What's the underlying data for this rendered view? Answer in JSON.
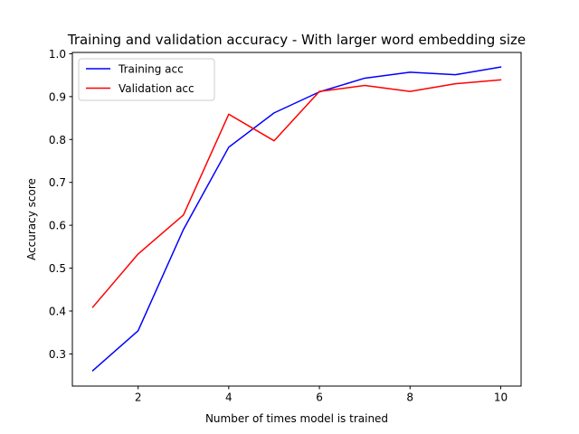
{
  "chart_data": {
    "type": "line",
    "title": "Training and validation accuracy - With larger word embedding size",
    "xlabel": "Number of times model is trained",
    "ylabel": "Accuracy score",
    "x": [
      1,
      2,
      3,
      4,
      5,
      6,
      7,
      8,
      9,
      10
    ],
    "xlim": [
      0.55,
      10.45
    ],
    "ylim": [
      0.225,
      1.003
    ],
    "xticks": [
      2,
      4,
      6,
      8,
      10
    ],
    "xtick_labels": [
      "2",
      "4",
      "6",
      "8",
      "10"
    ],
    "yticks": [
      0.3,
      0.4,
      0.5,
      0.6,
      0.7,
      0.8,
      0.9,
      1.0
    ],
    "ytick_labels": [
      "0.3",
      "0.4",
      "0.5",
      "0.6",
      "0.7",
      "0.8",
      "0.9",
      "1.0"
    ],
    "grid": false,
    "legend_position": "top-left",
    "series": [
      {
        "name": "Training acc",
        "color": "#0000ff",
        "values": [
          0.261,
          0.354,
          0.59,
          0.782,
          0.862,
          0.911,
          0.943,
          0.957,
          0.951,
          0.969
        ]
      },
      {
        "name": "Validation acc",
        "color": "#ff0000",
        "values": [
          0.409,
          0.533,
          0.624,
          0.859,
          0.797,
          0.912,
          0.926,
          0.912,
          0.93,
          0.939
        ]
      }
    ]
  }
}
